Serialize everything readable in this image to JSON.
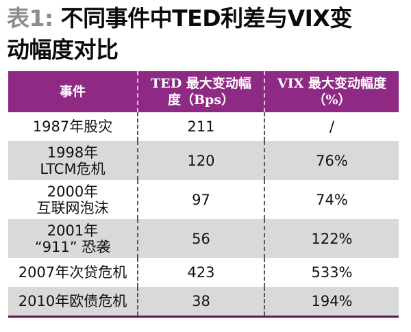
{
  "title": {
    "prefix": "表1:",
    "line1": "不同事件中TED利差与VIX变",
    "line2": "动幅度对比"
  },
  "table": {
    "headers": {
      "event": "事件",
      "ted_line1": "TED 最大变动幅",
      "ted_line2": "度（Bps）",
      "vix_line1": "VIX 最大变动幅度",
      "vix_line2": "（%）"
    },
    "rows": [
      {
        "event_l1": "1987年股灾",
        "event_l2": "",
        "ted": "211",
        "vix": "/"
      },
      {
        "event_l1": "1998年",
        "event_l2": "LTCM危机",
        "ted": "120",
        "vix": "76%"
      },
      {
        "event_l1": "2000年",
        "event_l2": "互联网泡沫",
        "ted": "97",
        "vix": "74%"
      },
      {
        "event_l1": "2001年",
        "event_l2": "“911” 恐袭",
        "ted": "56",
        "vix": "122%"
      },
      {
        "event_l1": "2007年次贷危机",
        "event_l2": "",
        "ted": "423",
        "vix": "533%"
      },
      {
        "event_l1": "2010年欧债危机",
        "event_l2": "",
        "ted": "38",
        "vix": "194%"
      }
    ]
  },
  "colors": {
    "header_bg": "#8e2a84",
    "shaded_row": "#d9d9d9",
    "title_prefix": "#8c8c8c"
  }
}
